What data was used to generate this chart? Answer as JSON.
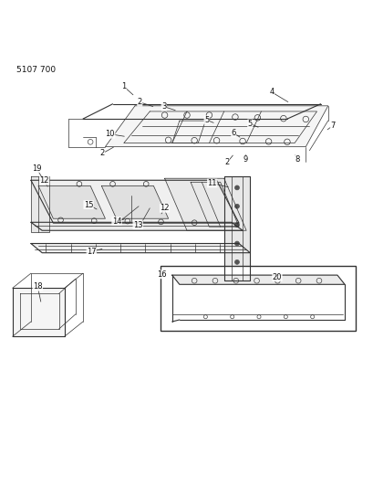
{
  "title_text": "5107 700",
  "background_color": "#ffffff",
  "line_color": "#000000",
  "label_color": "#000000",
  "fig_width": 4.1,
  "fig_height": 5.33,
  "dpi": 100
}
